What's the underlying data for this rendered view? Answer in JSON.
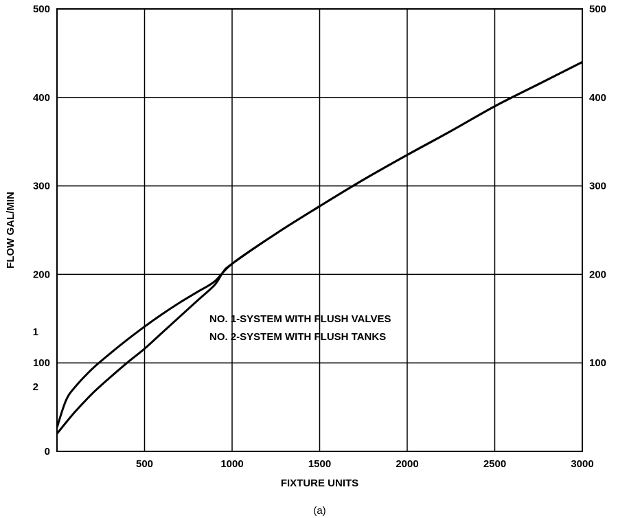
{
  "chart_data": {
    "type": "line",
    "xlabel": "FIXTURE UNITS",
    "ylabel": "FLOW  GAL/MIN",
    "caption": "(a)",
    "xlim": [
      0,
      3000
    ],
    "ylim": [
      0,
      500
    ],
    "x_ticks": [
      "500",
      "1000",
      "1500",
      "2000",
      "2500",
      "3000"
    ],
    "x_tick_values": [
      500,
      1000,
      1500,
      2000,
      2500,
      3000
    ],
    "y_ticks_left": [
      "0",
      "100",
      "200",
      "300",
      "400",
      "500"
    ],
    "y_ticks_right": [
      "100",
      "200",
      "300",
      "400",
      "500"
    ],
    "y_tick_values_right": [
      100,
      200,
      300,
      400,
      500
    ],
    "grid": true,
    "legend_lines": [
      "NO. 1-SYSTEM WITH FLUSH VALVES",
      "NO. 2-SYSTEM WITH FLUSH TANKS"
    ],
    "series": [
      {
        "name": "1",
        "x": [
          0,
          50,
          100,
          200,
          300,
          400,
          500,
          600,
          700,
          800,
          900,
          1000,
          1250,
          1500,
          1750,
          2000,
          2250,
          2500,
          2750,
          3000
        ],
        "y": [
          27,
          57,
          72,
          93,
          110,
          126,
          141,
          155,
          168,
          180,
          192,
          212,
          246,
          277,
          307,
          335,
          362,
          390,
          415,
          440
        ]
      },
      {
        "name": "2",
        "x": [
          0,
          100,
          200,
          300,
          400,
          500,
          600,
          700,
          800,
          900,
          950,
          1000,
          1250,
          1500,
          1750,
          2000,
          2250,
          2500,
          2750,
          3000
        ],
        "y": [
          20,
          44,
          65,
          83,
          100,
          116,
          134,
          152,
          170,
          188,
          203,
          212,
          246,
          277,
          307,
          335,
          362,
          390,
          415,
          440
        ]
      }
    ],
    "series_labels": [
      {
        "text": "1",
        "x": 270,
        "y": 125
      },
      {
        "text": "2",
        "x": 270,
        "y": 80
      }
    ]
  }
}
